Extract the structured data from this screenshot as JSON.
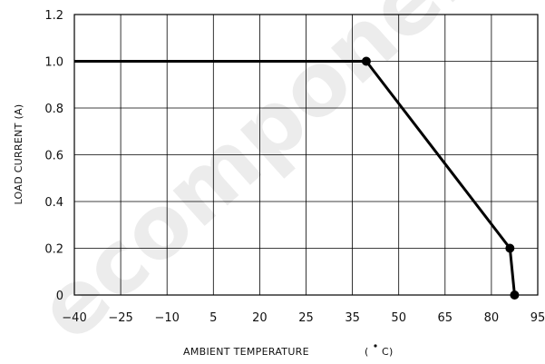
{
  "watermark": "ecomponent",
  "chart_data": {
    "type": "line",
    "title": "",
    "xlabel": "AMBIENT TEMPERATURE (° C)",
    "xlabel_parts": [
      "AMBIENT TEMPERATURE",
      "(",
      "C)"
    ],
    "ylabel": "LOAD CURRENT (A)",
    "x_tick_labels": [
      "−40",
      "−25",
      "−10",
      "5",
      "20",
      "25",
      "35",
      "50",
      "65",
      "80",
      "95"
    ],
    "y_tick_labels": [
      "0",
      "0.2",
      "0.4",
      "0.6",
      "0.8",
      "1.0",
      "1.2"
    ],
    "y_ticks": [
      0,
      0.2,
      0.4,
      0.6,
      0.8,
      1.0,
      1.2
    ],
    "ylim": [
      0,
      1.2
    ],
    "grid": true,
    "series": [
      {
        "x_position": [
          0,
          6.3,
          9.4,
          9.5
        ],
        "x": [
          -40,
          40,
          85,
          87
        ],
        "y": [
          1.0,
          1.0,
          0.2,
          0.0
        ],
        "markers": [
          false,
          true,
          true,
          true
        ],
        "color": "#000000"
      }
    ]
  }
}
